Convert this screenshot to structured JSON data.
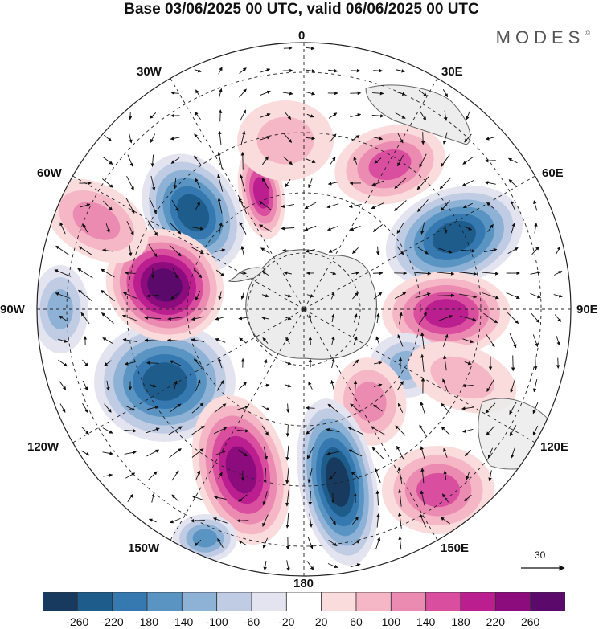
{
  "title": "Base 03/06/2025 00 UTC, valid 06/06/2025 00 UTC",
  "logo": {
    "text": "MODES",
    "mark": "©"
  },
  "lon_labels": [
    "0",
    "30E",
    "60E",
    "90E",
    "120E",
    "150E",
    "180",
    "150W",
    "120W",
    "90W",
    "60W",
    "30W"
  ],
  "vector_scale": {
    "label": "30"
  },
  "colorbar": {
    "ticks": [
      "-260",
      "-220",
      "-180",
      "-140",
      "-100",
      "-60",
      "-20",
      "20",
      "60",
      "100",
      "140",
      "180",
      "220",
      "260"
    ],
    "colors": [
      "#173a5e",
      "#1e5c8c",
      "#3679b0",
      "#5994c2",
      "#8eb1d6",
      "#c0cce3",
      "#e4e4f1",
      "#ffffff",
      "#fbdcdc",
      "#f5b6c6",
      "#eb8bb1",
      "#d94e9f",
      "#bb1f8f",
      "#8d0c7d",
      "#5b0a6c"
    ]
  },
  "colors": {
    "land": "#ececec",
    "coast": "#555555",
    "grid": "#222222"
  }
}
